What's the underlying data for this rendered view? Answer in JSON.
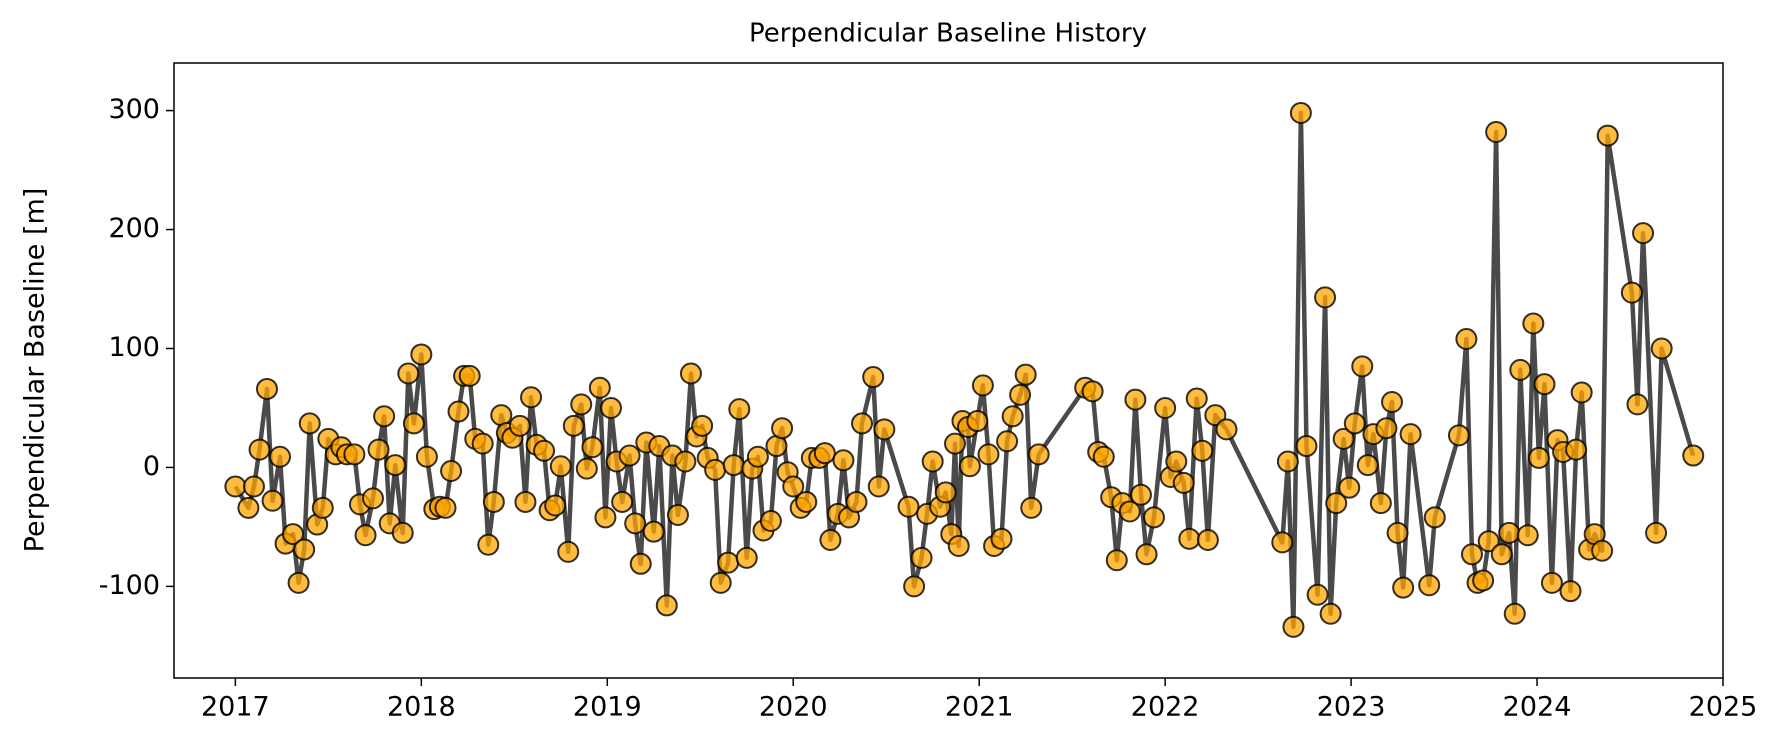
{
  "chart_data": {
    "type": "line",
    "title": "Perpendicular Baseline History",
    "ylabel": "Perpendicular Baseline [m]",
    "line_color": "#404040",
    "marker_color": "#ffa500",
    "xlim": [
      2016.67,
      2025.0
    ],
    "xticks": [
      2017,
      2018,
      2019,
      2020,
      2021,
      2022,
      2023,
      2024,
      2025
    ],
    "ylim": [
      -177,
      340
    ],
    "yticks": [
      -100,
      0,
      100,
      200,
      300
    ],
    "x": [
      2017.0,
      2017.07,
      2017.1,
      2017.13,
      2017.17,
      2017.2,
      2017.24,
      2017.27,
      2017.31,
      2017.34,
      2017.37,
      2017.4,
      2017.44,
      2017.47,
      2017.5,
      2017.54,
      2017.57,
      2017.6,
      2017.64,
      2017.67,
      2017.7,
      2017.74,
      2017.77,
      2017.8,
      2017.83,
      2017.86,
      2017.9,
      2017.93,
      2017.96,
      2018.0,
      2018.03,
      2018.07,
      2018.1,
      2018.13,
      2018.16,
      2018.2,
      2018.23,
      2018.26,
      2018.29,
      2018.33,
      2018.36,
      2018.39,
      2018.43,
      2018.46,
      2018.49,
      2018.53,
      2018.56,
      2018.59,
      2018.62,
      2018.66,
      2018.69,
      2018.72,
      2018.75,
      2018.79,
      2018.82,
      2018.86,
      2018.89,
      2018.92,
      2018.96,
      2018.99,
      2019.02,
      2019.05,
      2019.08,
      2019.12,
      2019.15,
      2019.18,
      2019.21,
      2019.25,
      2019.28,
      2019.32,
      2019.35,
      2019.38,
      2019.42,
      2019.45,
      2019.48,
      2019.51,
      2019.54,
      2019.58,
      2019.61,
      2019.65,
      2019.68,
      2019.71,
      2019.75,
      2019.78,
      2019.81,
      2019.84,
      2019.88,
      2019.91,
      2019.94,
      2019.97,
      2020.0,
      2020.04,
      2020.07,
      2020.1,
      2020.14,
      2020.17,
      2020.2,
      2020.24,
      2020.27,
      2020.3,
      2020.34,
      2020.37,
      2020.43,
      2020.46,
      2020.49,
      2020.62,
      2020.65,
      2020.69,
      2020.72,
      2020.75,
      2020.79,
      2020.82,
      2020.85,
      2020.87,
      2020.89,
      2020.91,
      2020.94,
      2020.95,
      2020.99,
      2021.02,
      2021.05,
      2021.08,
      2021.12,
      2021.15,
      2021.18,
      2021.22,
      2021.25,
      2021.28,
      2021.32,
      2021.57,
      2021.61,
      2021.64,
      2021.67,
      2021.71,
      2021.74,
      2021.77,
      2021.81,
      2021.84,
      2021.87,
      2021.9,
      2021.94,
      2022.0,
      2022.03,
      2022.06,
      2022.1,
      2022.13,
      2022.17,
      2022.2,
      2022.23,
      2022.27,
      2022.33,
      2022.63,
      2022.66,
      2022.69,
      2022.73,
      2022.76,
      2022.82,
      2022.86,
      2022.89,
      2022.92,
      2022.96,
      2022.99,
      2023.02,
      2023.06,
      2023.09,
      2023.12,
      2023.16,
      2023.19,
      2023.22,
      2023.25,
      2023.28,
      2023.32,
      2023.42,
      2023.45,
      2023.58,
      2023.62,
      2023.65,
      2023.68,
      2023.71,
      2023.74,
      2023.78,
      2023.81,
      2023.85,
      2023.88,
      2023.91,
      2023.95,
      2023.98,
      2024.01,
      2024.04,
      2024.08,
      2024.11,
      2024.14,
      2024.18,
      2024.21,
      2024.24,
      2024.28,
      2024.31,
      2024.35,
      2024.38,
      2024.51,
      2024.54,
      2024.57,
      2024.64,
      2024.67,
      2024.84
    ],
    "values": [
      -16,
      -34,
      -16,
      15,
      66,
      -28,
      9,
      -64,
      -56,
      -97,
      -69,
      37,
      -48,
      -34,
      24,
      11,
      17,
      11,
      11,
      -31,
      -57,
      -26,
      15,
      43,
      -47,
      2,
      -55,
      79,
      37,
      95,
      9,
      -35,
      -33,
      -34,
      -3,
      47,
      77,
      77,
      24,
      20,
      -65,
      -29,
      44,
      29,
      25,
      35,
      -29,
      59,
      19,
      14,
      -36,
      -32,
      1,
      -71,
      35,
      53,
      -1,
      17,
      67,
      -42,
      50,
      5,
      -29,
      10,
      -47,
      -81,
      21,
      -54,
      18,
      -116,
      10,
      -40,
      5,
      79,
      26,
      35,
      8,
      -2,
      -97,
      -80,
      2,
      49,
      -76,
      -1,
      9,
      -53,
      -45,
      18,
      33,
      -4,
      -16,
      -34,
      -29,
      8,
      8,
      12,
      -61,
      -39,
      6,
      -42,
      -29,
      37,
      76,
      -16,
      32,
      -33,
      -100,
      -76,
      -39,
      5,
      -33,
      -21,
      -56,
      20,
      -66,
      39,
      34,
      1,
      39,
      69,
      11,
      -66,
      -60,
      22,
      43,
      61,
      78,
      -34,
      11,
      67,
      64,
      13,
      9,
      -25,
      -78,
      -30,
      -37,
      57,
      -23,
      -73,
      -42,
      50,
      -8,
      5,
      -13,
      -60,
      58,
      14,
      -61,
      44,
      32,
      -63,
      5,
      -134,
      298,
      18,
      -107,
      143,
      -123,
      -30,
      24,
      -17,
      37,
      85,
      2,
      28,
      -30,
      33,
      55,
      -55,
      -101,
      28,
      -99,
      -42,
      27,
      108,
      -73,
      -97,
      -95,
      -62,
      282,
      -73,
      -55,
      -123,
      82,
      -57,
      121,
      8,
      70,
      -97,
      23,
      13,
      -104,
      15,
      63,
      -69,
      -56,
      -70,
      279,
      147,
      53,
      197,
      -55,
      100,
      10
    ]
  }
}
